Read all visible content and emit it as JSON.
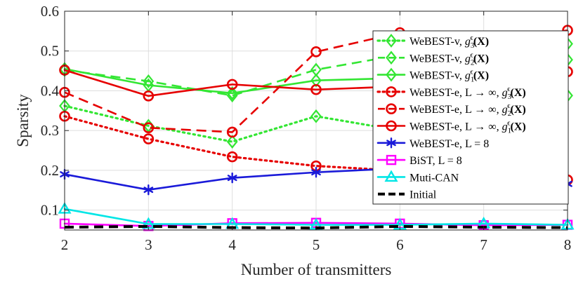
{
  "chart_data": {
    "type": "line",
    "xlabel": "Number of transmitters",
    "ylabel": "Sparsity",
    "xlim": [
      2,
      8
    ],
    "ylim": [
      0.05,
      0.6
    ],
    "x_ticks": [
      2,
      3,
      4,
      5,
      6,
      7,
      8
    ],
    "y_ticks": [
      0.1,
      0.2,
      0.3,
      0.4,
      0.5,
      0.6
    ],
    "y_tick_labels": [
      "0.1",
      "0.2",
      "0.3",
      "0.4",
      "0.5",
      "0.6"
    ],
    "grid": true,
    "legend_position": "right",
    "series": [
      {
        "name": "WeBEST-v, g3(X)",
        "color": "#33e633",
        "line": "dotted",
        "marker": "diamond",
        "x": [
          2,
          3,
          4,
          5,
          6,
          7,
          8
        ],
        "y": [
          0.362,
          0.312,
          0.272,
          0.336,
          0.3,
          0.34,
          0.388
        ]
      },
      {
        "name": "WeBEST-v, g2(X)",
        "color": "#33e633",
        "line": "dashed",
        "marker": "diamond",
        "x": [
          2,
          3,
          4,
          5,
          6,
          7,
          8
        ],
        "y": [
          0.452,
          0.424,
          0.388,
          0.453,
          0.49,
          0.47,
          0.478
        ]
      },
      {
        "name": "WeBEST-v, g1(X)",
        "color": "#33e633",
        "line": "solid",
        "marker": "diamond",
        "x": [
          2,
          3,
          4,
          5,
          6,
          7,
          8
        ],
        "y": [
          0.455,
          0.414,
          0.394,
          0.426,
          0.432,
          0.48,
          0.518
        ]
      },
      {
        "name": "WeBEST-e, L→∞, g3(X)",
        "color": "#e60000",
        "line": "dotted",
        "marker": "circle",
        "x": [
          2,
          3,
          4,
          5,
          6,
          7,
          8
        ],
        "y": [
          0.336,
          0.279,
          0.234,
          0.211,
          0.199,
          0.188,
          0.176
        ]
      },
      {
        "name": "WeBEST-e, L→∞, g2(X)",
        "color": "#e60000",
        "line": "dashed",
        "marker": "circle",
        "x": [
          2,
          3,
          4,
          5,
          6,
          7,
          8
        ],
        "y": [
          0.396,
          0.307,
          0.296,
          0.498,
          0.546,
          0.525,
          0.552
        ]
      },
      {
        "name": "WeBEST-e, L→∞, g1(X)",
        "color": "#e60000",
        "line": "solid",
        "marker": "circle",
        "x": [
          2,
          3,
          4,
          5,
          6,
          7,
          8
        ],
        "y": [
          0.452,
          0.387,
          0.416,
          0.403,
          0.411,
          0.43,
          0.448
        ]
      },
      {
        "name": "WeBEST-e, L = 8",
        "color": "#1a1ad9",
        "line": "solid",
        "marker": "asterisk",
        "x": [
          2,
          3,
          4,
          5,
          6,
          7,
          8
        ],
        "y": [
          0.19,
          0.151,
          0.181,
          0.195,
          0.205,
          0.185,
          0.166
        ]
      },
      {
        "name": "BiST, L = 8",
        "color": "#ff00ff",
        "line": "solid",
        "marker": "square",
        "x": [
          2,
          3,
          4,
          5,
          6,
          7,
          8
        ],
        "y": [
          0.066,
          0.06,
          0.067,
          0.068,
          0.066,
          0.062,
          0.063
        ]
      },
      {
        "name": "Muti-CAN",
        "color": "#00e6e6",
        "line": "solid",
        "marker": "triangle",
        "x": [
          2,
          3,
          4,
          5,
          6,
          7,
          8
        ],
        "y": [
          0.103,
          0.065,
          0.065,
          0.063,
          0.063,
          0.066,
          0.063
        ]
      },
      {
        "name": "Initial",
        "color": "#000000",
        "line": "dashed-thick",
        "marker": "none",
        "x": [
          2,
          3,
          4,
          5,
          6,
          7,
          8
        ],
        "y": [
          0.057,
          0.059,
          0.056,
          0.055,
          0.059,
          0.057,
          0.056
        ]
      }
    ],
    "legend": [
      {
        "prefix": "WeBEST-v, ",
        "func": "g",
        "sub": "3",
        "sup": "ϵ",
        "arg": "(X)"
      },
      {
        "prefix": "WeBEST-v, ",
        "func": "g",
        "sub": "2",
        "sup": "ϵ",
        "arg": "(X)"
      },
      {
        "prefix": "WeBEST-v, ",
        "func": "g",
        "sub": "1",
        "sup": "ϵ",
        "arg": "(X)"
      },
      {
        "prefix": "WeBEST-e, L → ∞, ",
        "func": "g",
        "sub": "3",
        "sup": "ϵ",
        "arg": "(X)"
      },
      {
        "prefix": "WeBEST-e, L → ∞, ",
        "func": "g",
        "sub": "2",
        "sup": "ϵ",
        "arg": "(X)"
      },
      {
        "prefix": "WeBEST-e, L → ∞, ",
        "func": "g",
        "sub": "1",
        "sup": "ϵ",
        "arg": "(X)"
      },
      {
        "prefix": "WeBEST-e, L = 8"
      },
      {
        "prefix": "BiST, L = 8"
      },
      {
        "prefix": "Muti-CAN"
      },
      {
        "prefix": "Initial"
      }
    ]
  }
}
